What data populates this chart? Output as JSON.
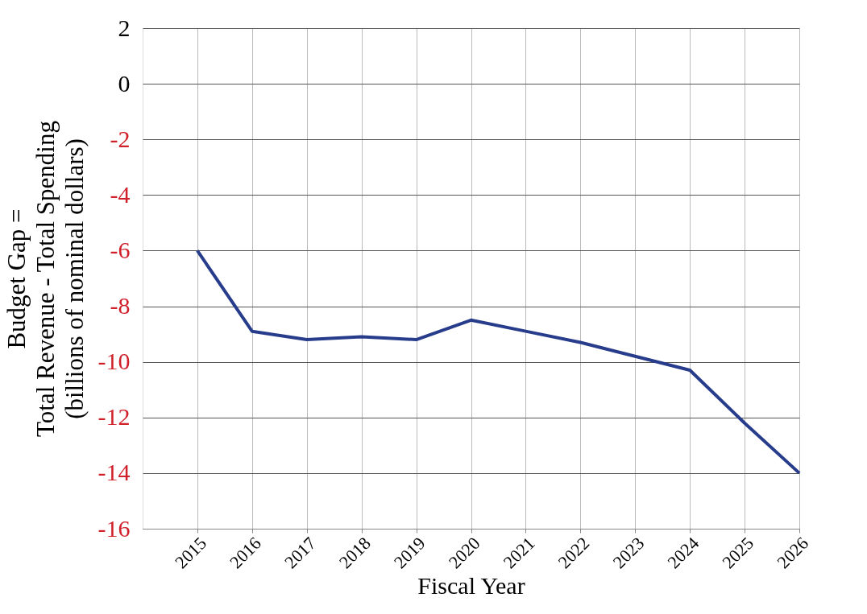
{
  "chart_data": {
    "type": "line",
    "xlabel": "Fiscal Year",
    "ylabel": "Budget Gap =\nTotal Revenue - Total Spending\n(billions of nominal dollars)",
    "x": [
      2015,
      2016,
      2017,
      2018,
      2019,
      2020,
      2021,
      2022,
      2023,
      2024,
      2025,
      2026
    ],
    "series": [
      {
        "color": "#283c8c",
        "values": [
          -6,
          -8.9,
          -9.2,
          -9.1,
          -9.2,
          -8.5,
          -8.9,
          -9.3,
          -9.8,
          -10.3,
          -12.2,
          -14.0
        ]
      }
    ],
    "xlim": [
      2014,
      2026
    ],
    "xticks": [
      2015,
      2016,
      2017,
      2018,
      2019,
      2020,
      2021,
      2022,
      2023,
      2024,
      2025,
      2026
    ],
    "ylim": [
      -16,
      2
    ],
    "yticks": [
      -16,
      -14,
      -12,
      -10,
      -8,
      -6,
      -4,
      -2,
      0,
      2
    ],
    "grid": true,
    "marker": "none",
    "line_style": "solid"
  }
}
